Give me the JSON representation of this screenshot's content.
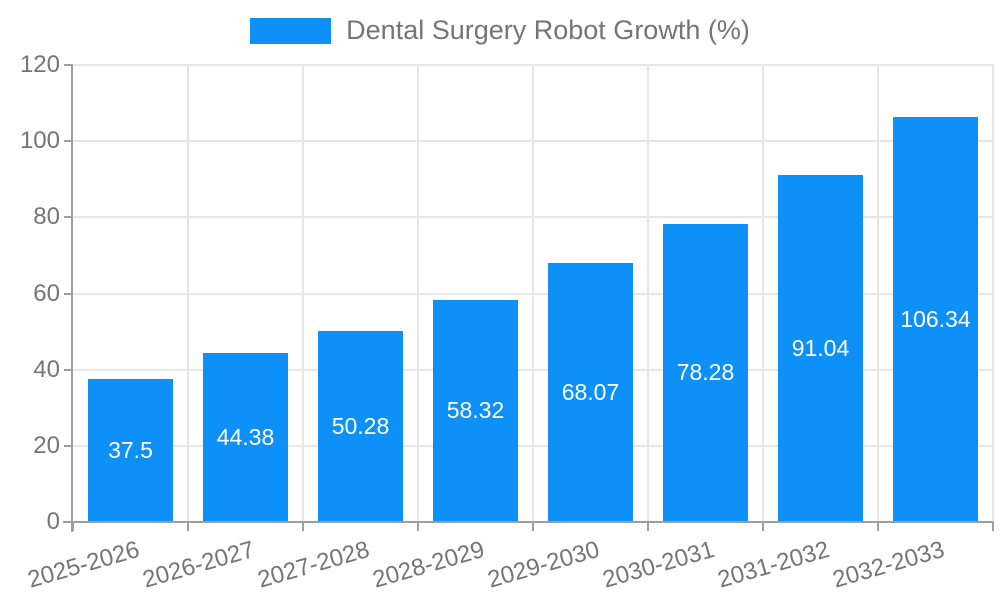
{
  "legend": {
    "label": "Dental Surgery Robot Growth (%)"
  },
  "chart_data": {
    "type": "bar",
    "title": "Dental Surgery Robot Growth (%)",
    "series_name": "Dental Surgery Robot Growth (%)",
    "categories": [
      "2025-2026",
      "2026-2027",
      "2027-2028",
      "2028-2029",
      "2029-2030",
      "2030-2031",
      "2031-2032",
      "2032-2033"
    ],
    "values": [
      37.5,
      44.38,
      50.28,
      58.32,
      68.07,
      78.28,
      91.04,
      106.34
    ],
    "value_labels": [
      "37.5",
      "44.38",
      "50.28",
      "58.32",
      "68.07",
      "78.28",
      "91.04",
      "106.34"
    ],
    "xlabel": "",
    "ylabel": "",
    "ylim": [
      0,
      120
    ],
    "yticks": [
      0,
      20,
      40,
      60,
      80,
      100,
      120
    ],
    "grid": true,
    "legend_position": "top-center",
    "x_label_rotation_deg": -16,
    "bar_width_fraction": 0.74,
    "colors": {
      "bar": "#0D90F8",
      "value_label": "#FFFFFF",
      "axis_text": "#757575",
      "grid_line": "#E6E6E6",
      "axis_line": "#9E9E9E",
      "background": "#FFFFFF"
    }
  }
}
